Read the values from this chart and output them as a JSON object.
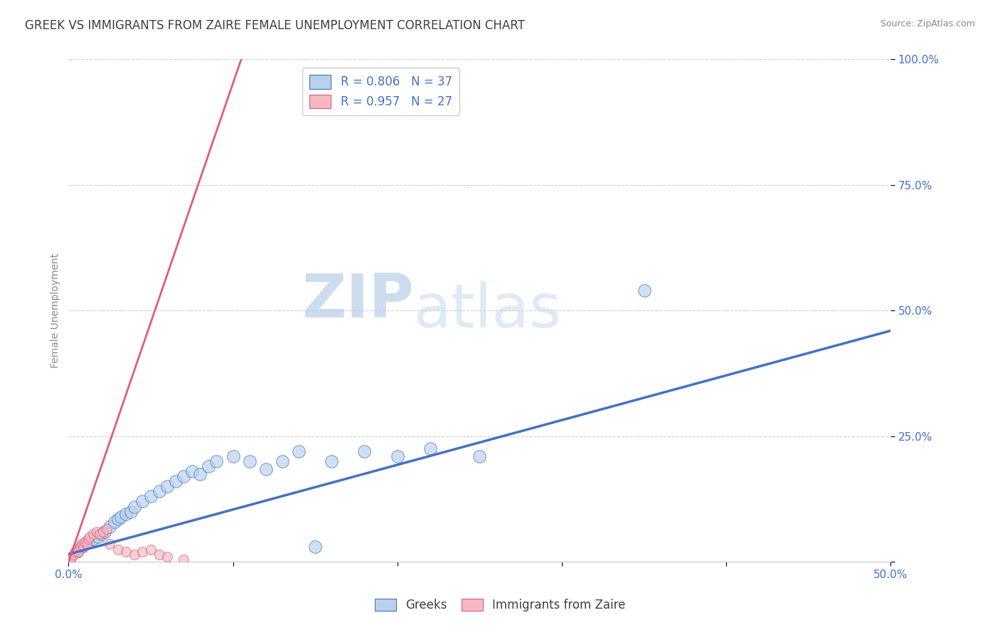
{
  "title": "GREEK VS IMMIGRANTS FROM ZAIRE FEMALE UNEMPLOYMENT CORRELATION CHART",
  "source": "Source: ZipAtlas.com",
  "ylabel": "Female Unemployment",
  "xlim": [
    0,
    50
  ],
  "ylim": [
    0,
    100
  ],
  "legend_entries": [
    {
      "label": "Greeks",
      "color": "#aec6e8",
      "edge": "#4472C4",
      "R": 0.806,
      "N": 37
    },
    {
      "label": "Immigrants from Zaire",
      "color": "#f4b8c1",
      "edge": "#E05C7A",
      "R": 0.957,
      "N": 27
    }
  ],
  "blue_line_color": "#4472C4",
  "pink_line_color": "#E05C7A",
  "watermark_zip": "ZIP",
  "watermark_atlas": "atlas",
  "background_color": "#ffffff",
  "grid_color": "#c8c8c8",
  "title_color": "#404040",
  "axis_label_color": "#4472C4",
  "blue_scatter": {
    "x": [
      0.5,
      0.8,
      1.0,
      1.2,
      1.5,
      1.8,
      2.0,
      2.2,
      2.5,
      2.8,
      3.0,
      3.2,
      3.5,
      3.8,
      4.0,
      4.5,
      5.0,
      5.5,
      6.0,
      6.5,
      7.0,
      7.5,
      8.0,
      8.5,
      9.0,
      10.0,
      11.0,
      12.0,
      13.0,
      14.0,
      16.0,
      18.0,
      20.0,
      22.0,
      25.0,
      35.0,
      15.0
    ],
    "y": [
      2.0,
      3.0,
      3.5,
      4.0,
      4.5,
      5.0,
      5.5,
      6.0,
      7.0,
      8.0,
      8.5,
      9.0,
      9.5,
      10.0,
      11.0,
      12.0,
      13.0,
      14.0,
      15.0,
      16.0,
      17.0,
      18.0,
      17.5,
      19.0,
      20.0,
      21.0,
      20.0,
      18.5,
      20.0,
      22.0,
      20.0,
      22.0,
      21.0,
      22.5,
      21.0,
      54.0,
      3.0
    ]
  },
  "pink_scatter": {
    "x": [
      0.1,
      0.2,
      0.3,
      0.4,
      0.5,
      0.6,
      0.7,
      0.8,
      0.9,
      1.0,
      1.1,
      1.2,
      1.3,
      1.5,
      1.7,
      1.9,
      2.1,
      2.3,
      2.5,
      3.0,
      3.5,
      4.0,
      4.5,
      5.0,
      5.5,
      6.0,
      7.0
    ],
    "y": [
      0.5,
      1.0,
      1.5,
      2.0,
      2.5,
      2.0,
      3.0,
      3.5,
      3.0,
      4.0,
      3.5,
      4.5,
      5.0,
      5.5,
      6.0,
      5.5,
      6.0,
      6.5,
      3.5,
      2.5,
      2.0,
      1.5,
      2.0,
      2.5,
      1.5,
      1.0,
      0.5
    ]
  },
  "blue_line": {
    "x0": 0,
    "y0": 1.5,
    "x1": 50,
    "y1": 46
  },
  "pink_line": {
    "x0": 0,
    "y0": 0,
    "x1": 10.5,
    "y1": 100
  }
}
